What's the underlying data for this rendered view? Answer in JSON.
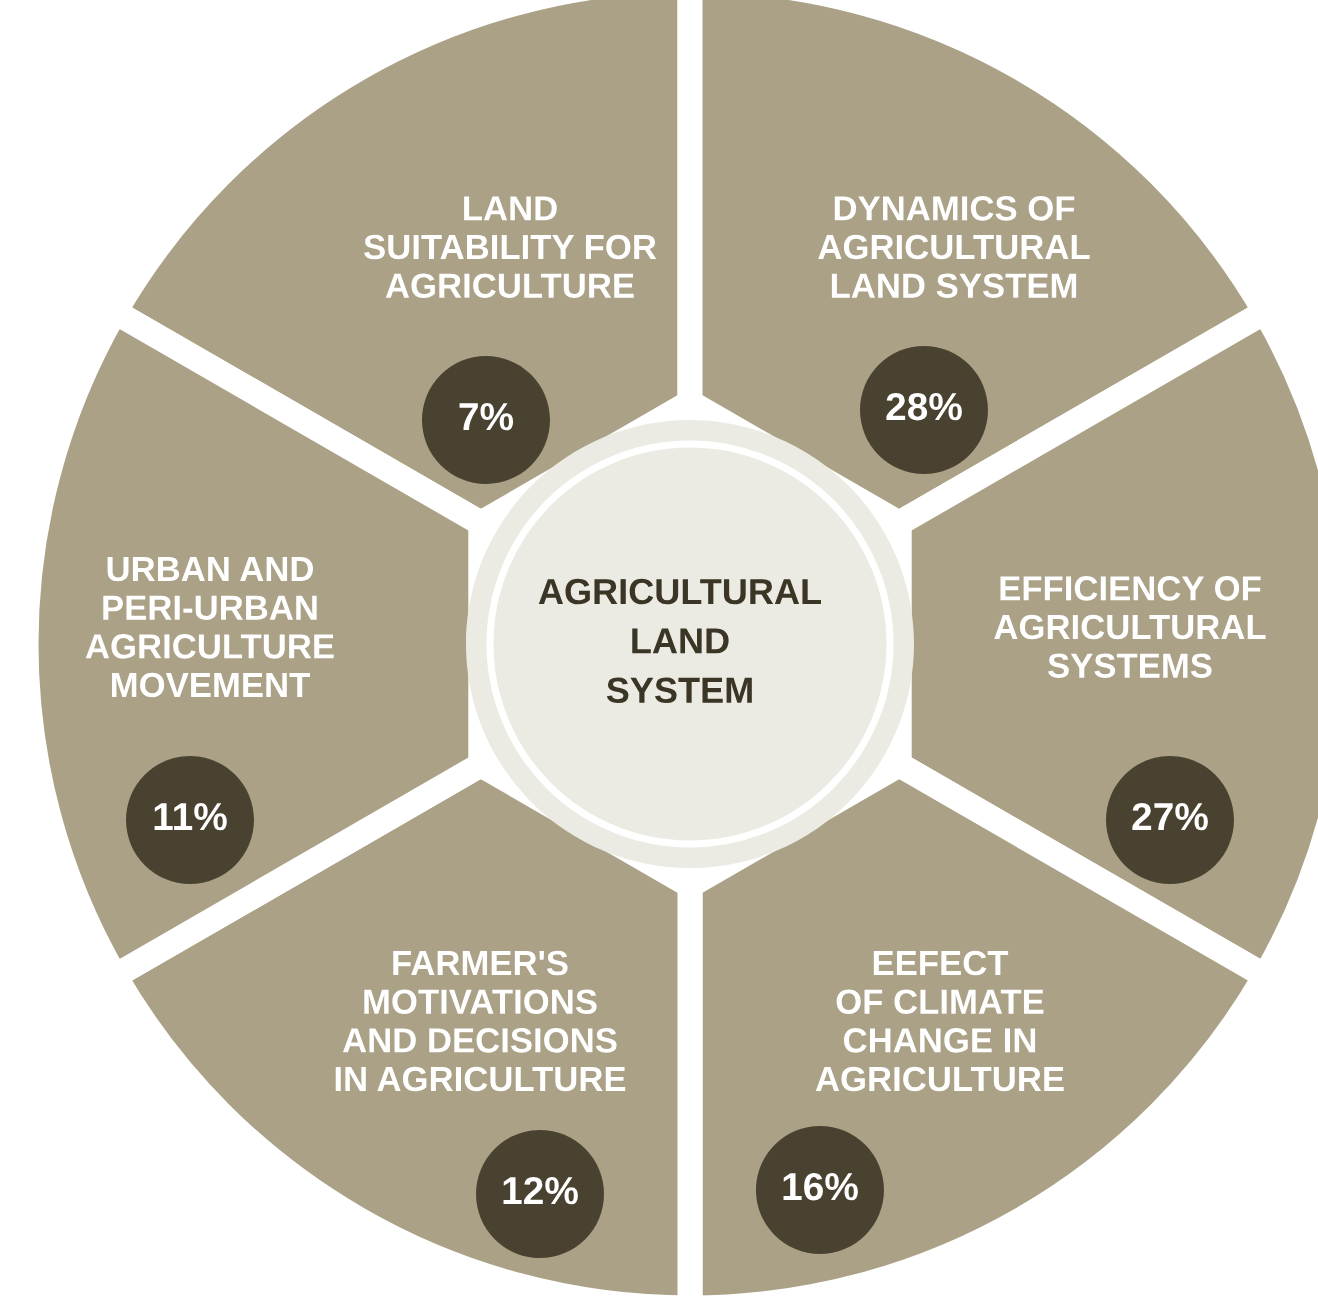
{
  "chart_data": {
    "type": "other",
    "title": "AGRICULTURAL LAND SYSTEM",
    "categories": [
      "LAND SUITABILITY FOR AGRICULTURE",
      "DYNAMICS OF AGRICULTURAL LAND SYSTEM",
      "EFFICIENCY OF AGRICULTURAL SYSTEMS",
      "EEFECT OF CLIMATE CHANGE IN AGRICULTURE",
      "FARMER'S MOTIVATIONS AND DECISIONS IN AGRICULTURE",
      "URBAN AND PERI-URBAN AGRICULTURE MOVEMENT"
    ],
    "values": [
      7,
      28,
      27,
      16,
      12,
      11
    ],
    "value_labels": [
      "7%",
      "28%",
      "27%",
      "16%",
      "12%",
      "11%"
    ],
    "colors": [
      "#4a4230",
      "#4a4230",
      "#4a4230",
      "#4a4230",
      "#4a4230",
      "#4a4230"
    ]
  }
}
